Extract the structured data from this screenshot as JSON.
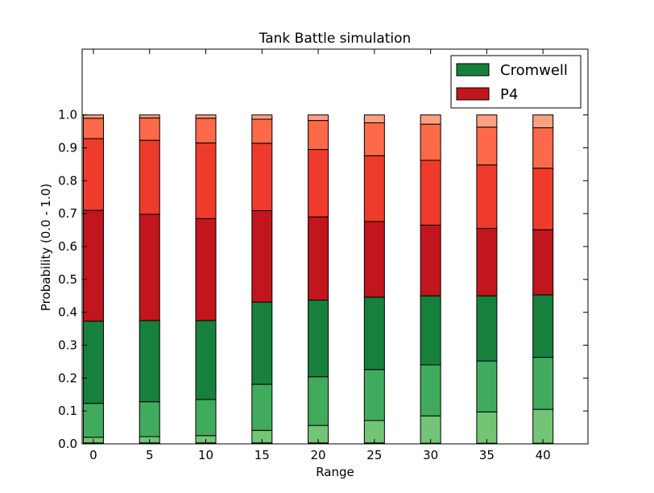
{
  "chart_data": {
    "type": "bar",
    "stacked": true,
    "title": "Tank Battle simulation",
    "xlabel": "Range",
    "ylabel": "Probability (0.0 - 1.0)",
    "ylim": [
      0,
      1.2
    ],
    "xlim": [
      -1,
      44
    ],
    "grid": false,
    "legend_position": "top-right",
    "x": [
      0,
      5,
      10,
      15,
      20,
      25,
      30,
      35,
      40
    ],
    "x_tick_labels": [
      "0",
      "5",
      "10",
      "15",
      "20",
      "25",
      "30",
      "35",
      "40"
    ],
    "y_ticks": [
      0.0,
      0.1,
      0.2,
      0.3,
      0.4,
      0.5,
      0.6,
      0.7,
      0.8,
      0.9,
      1.0
    ],
    "y_tick_labels": [
      "0.0",
      "0.1",
      "0.2",
      "0.3",
      "0.4",
      "0.5",
      "0.6",
      "0.7",
      "0.8",
      "0.9",
      "1.0"
    ],
    "legend": [
      {
        "label": "Cromwell",
        "color": "#17803d"
      },
      {
        "label": "P4",
        "color": "#c1161e"
      }
    ],
    "series": [
      {
        "color": "#005a22",
        "values": [
          0.003,
          0.003,
          0.003,
          0.003,
          0.003,
          0.003,
          0.002,
          0.002,
          0.002
        ]
      },
      {
        "color": "#74c476",
        "values": [
          0.017,
          0.019,
          0.022,
          0.038,
          0.053,
          0.068,
          0.083,
          0.095,
          0.103
        ]
      },
      {
        "color": "#41ab5d",
        "values": [
          0.103,
          0.106,
          0.11,
          0.14,
          0.148,
          0.155,
          0.155,
          0.155,
          0.158
        ]
      },
      {
        "color": "#17803d",
        "values": [
          0.25,
          0.247,
          0.24,
          0.25,
          0.233,
          0.22,
          0.21,
          0.198,
          0.19
        ]
      },
      {
        "color": "#c1161e",
        "values": [
          0.337,
          0.323,
          0.31,
          0.278,
          0.253,
          0.23,
          0.215,
          0.205,
          0.198
        ]
      },
      {
        "color": "#ef3b2c",
        "values": [
          0.218,
          0.225,
          0.23,
          0.205,
          0.205,
          0.2,
          0.197,
          0.193,
          0.187
        ]
      },
      {
        "color": "#fc6a4a",
        "values": [
          0.062,
          0.068,
          0.075,
          0.073,
          0.088,
          0.1,
          0.11,
          0.115,
          0.123
        ]
      },
      {
        "color": "#fca082",
        "values": [
          0.01,
          0.009,
          0.01,
          0.013,
          0.017,
          0.024,
          0.028,
          0.037,
          0.039
        ]
      }
    ]
  }
}
